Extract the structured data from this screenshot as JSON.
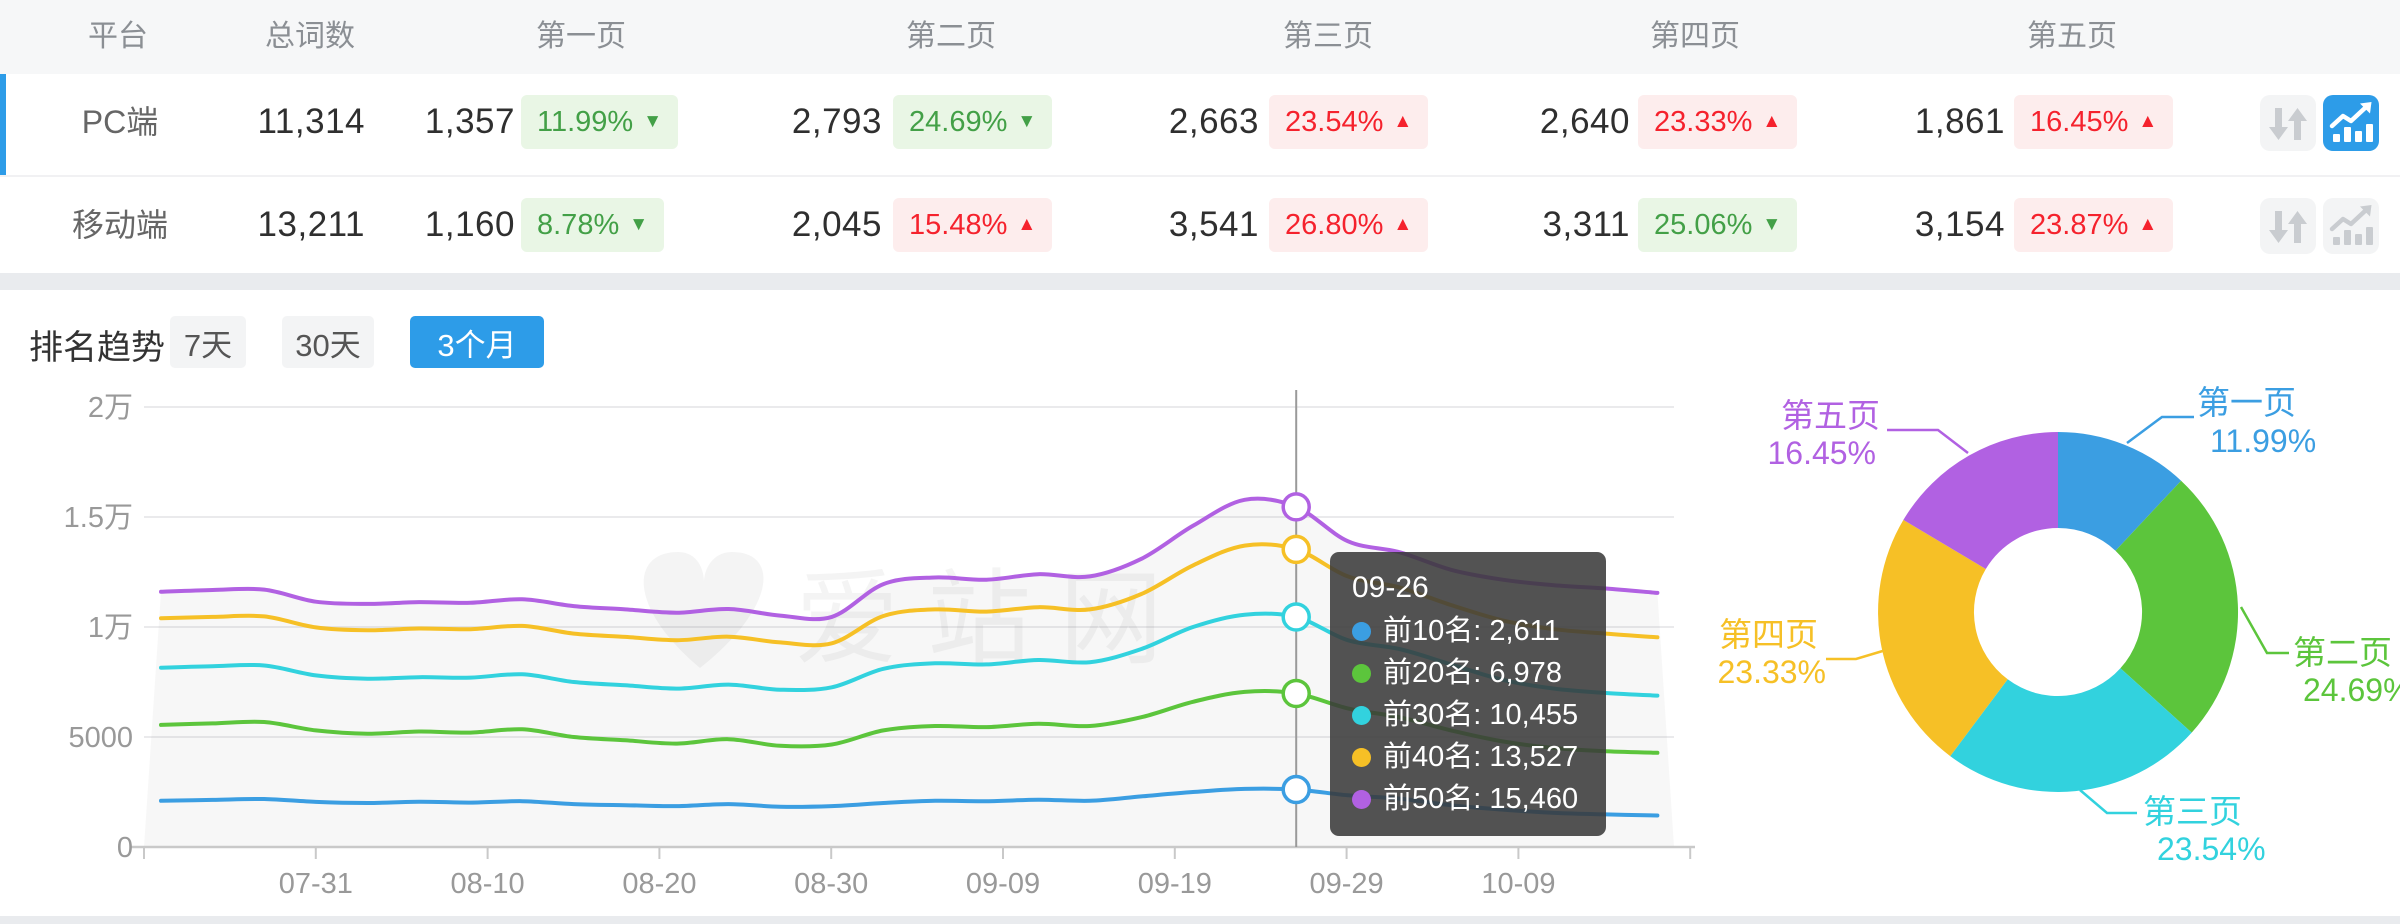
{
  "colors": {
    "accent_blue": "#2d9ce8",
    "badge_green_text": "#43a047",
    "badge_red_text": "#f5222d",
    "axis_text": "#999999",
    "grid_line": "#eaeaec"
  },
  "table": {
    "headers": [
      "平台",
      "总词数",
      "第一页",
      "第二页",
      "第三页",
      "第四页",
      "第五页"
    ],
    "rows": [
      {
        "platform": "PC端",
        "total": "11,314",
        "active": true,
        "pages": [
          {
            "count": "1,357",
            "pct": "11.99%",
            "dir": "down",
            "color": "green"
          },
          {
            "count": "2,793",
            "pct": "24.69%",
            "dir": "down",
            "color": "green"
          },
          {
            "count": "2,663",
            "pct": "23.54%",
            "dir": "up",
            "color": "red"
          },
          {
            "count": "2,640",
            "pct": "23.33%",
            "dir": "up",
            "color": "red"
          },
          {
            "count": "1,861",
            "pct": "16.45%",
            "dir": "up",
            "color": "red"
          }
        ]
      },
      {
        "platform": "移动端",
        "total": "13,211",
        "active": false,
        "pages": [
          {
            "count": "1,160",
            "pct": "8.78%",
            "dir": "down",
            "color": "green"
          },
          {
            "count": "2,045",
            "pct": "15.48%",
            "dir": "up",
            "color": "red"
          },
          {
            "count": "3,541",
            "pct": "26.80%",
            "dir": "up",
            "color": "red"
          },
          {
            "count": "3,311",
            "pct": "25.06%",
            "dir": "down",
            "color": "green"
          },
          {
            "count": "3,154",
            "pct": "23.87%",
            "dir": "up",
            "color": "red"
          }
        ]
      }
    ]
  },
  "trend": {
    "title": "排名趋势",
    "ranges": [
      {
        "label": "7天",
        "active": false
      },
      {
        "label": "30天",
        "active": false
      },
      {
        "label": "3个月",
        "active": true
      }
    ]
  },
  "watermark": "爱站网",
  "tooltip": {
    "title": "09-26",
    "rows": [
      {
        "name": "前10名",
        "value": "2,611",
        "color": "#3b9ee2"
      },
      {
        "name": "前20名",
        "value": "6,978",
        "color": "#5cc53c"
      },
      {
        "name": "前30名",
        "value": "10,455",
        "color": "#32d2de"
      },
      {
        "name": "前40名",
        "value": "13,527",
        "color": "#f6c026"
      },
      {
        "name": "前50名",
        "value": "15,460",
        "color": "#b161e2"
      }
    ]
  },
  "chart_data": [
    {
      "type": "line",
      "title": "排名趋势 (3个月)",
      "x": [
        "07-22",
        "07-25",
        "07-28",
        "07-31",
        "08-03",
        "08-06",
        "08-09",
        "08-12",
        "08-15",
        "08-18",
        "08-21",
        "08-24",
        "08-27",
        "08-30",
        "09-02",
        "09-05",
        "09-08",
        "09-11",
        "09-14",
        "09-17",
        "09-20",
        "09-23",
        "09-26",
        "09-29",
        "10-02",
        "10-05",
        "10-08",
        "10-11",
        "10-14",
        "10-17"
      ],
      "xticks": [
        "07-31",
        "08-10",
        "08-20",
        "08-30",
        "09-09",
        "09-19",
        "09-29",
        "10-09"
      ],
      "yticks": [
        {
          "label": "0",
          "value": 0
        },
        {
          "label": "5000",
          "value": 5000
        },
        {
          "label": "1万",
          "value": 10000
        },
        {
          "label": "1.5万",
          "value": 15000
        },
        {
          "label": "2万",
          "value": 20000
        }
      ],
      "ylim": [
        0,
        20000
      ],
      "grid": true,
      "hover": {
        "index": 22,
        "date": "09-26"
      },
      "series": [
        {
          "name": "前10名",
          "color": "#3b9ee2",
          "values": [
            2100,
            2140,
            2180,
            2050,
            2000,
            2060,
            2020,
            2080,
            1950,
            1900,
            1860,
            1950,
            1830,
            1860,
            2000,
            2100,
            2080,
            2150,
            2100,
            2300,
            2500,
            2640,
            2611,
            2350,
            2200,
            1900,
            1700,
            1550,
            1480,
            1430
          ]
        },
        {
          "name": "前20名",
          "color": "#5cc53c",
          "values": [
            5550,
            5620,
            5680,
            5300,
            5150,
            5250,
            5200,
            5350,
            5000,
            4850,
            4700,
            4900,
            4600,
            4660,
            5300,
            5500,
            5450,
            5600,
            5500,
            5900,
            6600,
            7050,
            6978,
            6300,
            5900,
            5300,
            4800,
            4500,
            4350,
            4280
          ]
        },
        {
          "name": "前30名",
          "color": "#32d2de",
          "values": [
            8150,
            8220,
            8250,
            7800,
            7650,
            7720,
            7700,
            7850,
            7500,
            7350,
            7200,
            7380,
            7150,
            7260,
            8100,
            8350,
            8300,
            8500,
            8400,
            9000,
            10000,
            10560,
            10455,
            9400,
            9000,
            8300,
            7600,
            7200,
            7000,
            6880
          ]
        },
        {
          "name": "前40名",
          "color": "#f6c026",
          "values": [
            10400,
            10460,
            10480,
            9980,
            9850,
            9930,
            9900,
            10050,
            9700,
            9550,
            9400,
            9560,
            9300,
            9260,
            10500,
            10800,
            10700,
            10900,
            10800,
            11500,
            12800,
            13700,
            13527,
            12300,
            11800,
            11000,
            10300,
            9900,
            9700,
            9530
          ]
        },
        {
          "name": "前50名",
          "color": "#b161e2",
          "values": [
            11600,
            11680,
            11700,
            11150,
            11050,
            11130,
            11100,
            11260,
            10950,
            10800,
            10650,
            10820,
            10520,
            10460,
            11950,
            12250,
            12150,
            12400,
            12300,
            13100,
            14600,
            15780,
            15460,
            13900,
            13400,
            12600,
            12150,
            11900,
            11750,
            11550
          ]
        }
      ]
    },
    {
      "type": "pie",
      "donut": true,
      "slices": [
        {
          "label": "第一页",
          "pct": 11.99,
          "color": "#3b9ee2"
        },
        {
          "label": "第二页",
          "pct": 24.69,
          "color": "#5cc53c"
        },
        {
          "label": "第三页",
          "pct": 23.54,
          "color": "#32d2de"
        },
        {
          "label": "第四页",
          "pct": 23.33,
          "color": "#f6c026"
        },
        {
          "label": "第五页",
          "pct": 16.45,
          "color": "#b161e2"
        }
      ]
    }
  ]
}
